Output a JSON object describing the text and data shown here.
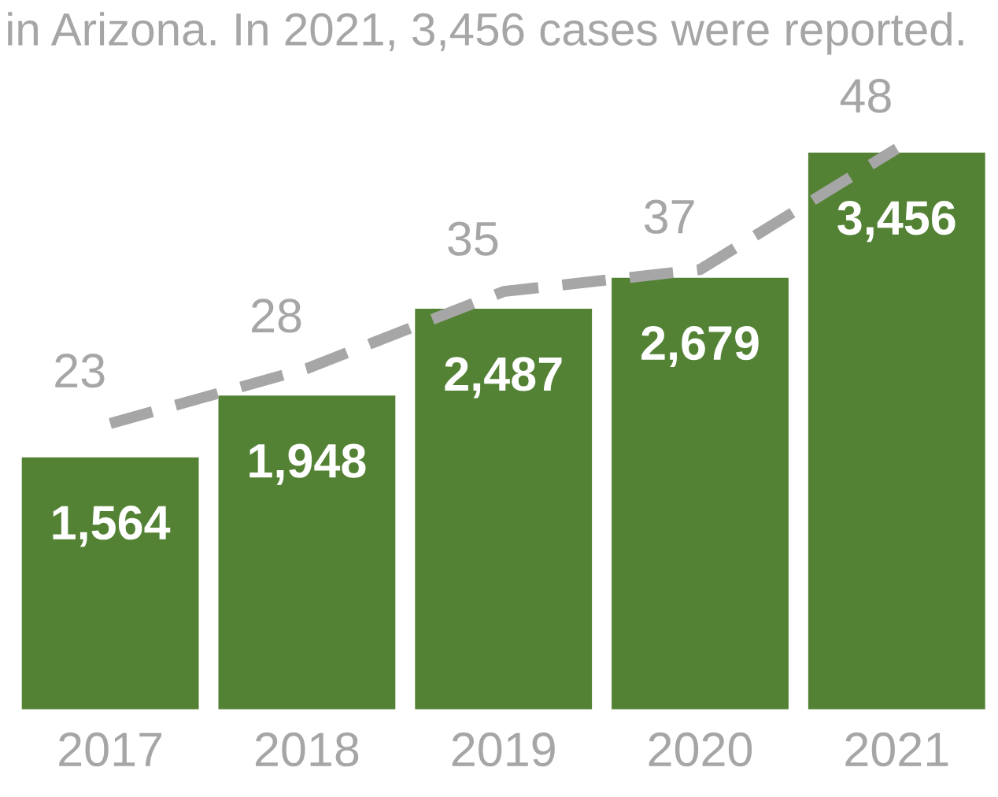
{
  "chart_data": {
    "type": "bar",
    "title": "in Arizona. In 2021, 3,456 cases were reported.",
    "categories": [
      "2017",
      "2018",
      "2019",
      "2020",
      "2021"
    ],
    "series": [
      {
        "color": "#548235",
        "values": [
          1564,
          1948,
          2487,
          2679,
          3456
        ],
        "value_labels": [
          "1,564",
          "1,948",
          "2,487",
          "2,679",
          "3,456"
        ]
      },
      {
        "type": "line",
        "axis": "y2",
        "color": "#a6a6a6",
        "line_style": "dashed",
        "values": [
          23,
          28,
          35,
          37,
          48
        ],
        "value_labels": [
          "23",
          "28",
          "35",
          "37",
          "48"
        ]
      }
    ],
    "tick_labels": "x",
    "grid": false,
    "legend": false
  }
}
